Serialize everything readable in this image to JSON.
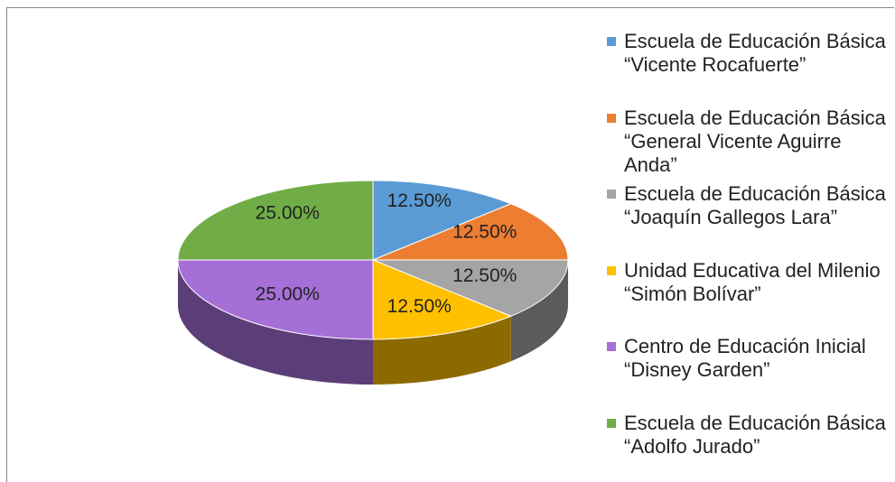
{
  "chart_data": {
    "type": "pie3d",
    "categories": [
      "Escuela de Educación Básica “Vicente Rocafuerte”",
      "Escuela de Educación Básica “General Vicente Aguirre Anda”",
      "Escuela de Educación Básica “Joaquín Gallegos Lara”",
      "Unidad Educativa del Milenio “Simón Bolívar”",
      "Centro de Educación Inicial “Disney Garden”",
      "Escuela de Educación Básica “Adolfo Jurado”"
    ],
    "values": [
      12.5,
      12.5,
      12.5,
      12.5,
      25,
      25
    ],
    "value_labels": [
      "12.50%",
      "12.50%",
      "12.50%",
      "12.50%",
      "25.00%",
      "25.00%"
    ],
    "colors": [
      "#5b9bd5",
      "#ed7d31",
      "#a5a5a5",
      "#ffc000",
      "#a66fd8",
      "#70ad47"
    ],
    "legend": "right"
  }
}
